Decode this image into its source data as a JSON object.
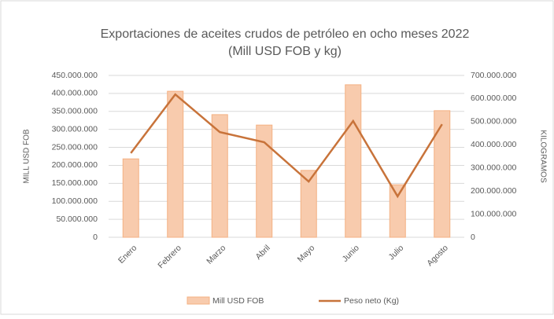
{
  "chart_data": {
    "type": "bar",
    "title": "Exportaciones de aceites crudos de petróleo en ocho meses 2022",
    "subtitle": "(Mill USD FOB y kg)",
    "y_label": "MILL USD FOB",
    "y2_label": "KILOGRAMOS",
    "categories": [
      "Enero",
      "Febrero",
      "Marzo",
      "Abril",
      "Mayo",
      "Junio",
      "Julio",
      "Agosto"
    ],
    "series": [
      {
        "name": "Mill USD FOB",
        "type": "bar",
        "color": "#f8cbad",
        "values": [
          218000000,
          406000000,
          341000000,
          312000000,
          186000000,
          424000000,
          146000000,
          352000000
        ]
      },
      {
        "name": "Peso neto (Kg)",
        "type": "line",
        "axis": "y2",
        "color": "#c8733a",
        "values": [
          364000000,
          618000000,
          455000000,
          411000000,
          241000000,
          503000000,
          177000000,
          489000000
        ]
      }
    ],
    "ylim": [
      0,
      450000000
    ],
    "yticks": [
      0,
      {
        "value": 50000000,
        "label": "50.000.000"
      },
      {
        "value": 100000000,
        "label": "100.000.000"
      },
      {
        "value": 150000000,
        "label": "150.000.000"
      },
      {
        "value": 200000000,
        "label": "200.000.000"
      },
      {
        "value": 250000000,
        "label": "250.000.000"
      },
      {
        "value": 300000000,
        "label": "300.000.000"
      },
      {
        "value": 350000000,
        "label": "350.000.000"
      },
      {
        "value": 400000000,
        "label": "400.000.000"
      },
      {
        "value": 450000000,
        "label": "450.000.000"
      }
    ],
    "y2lim": [
      0,
      700000000
    ],
    "y2ticks": [
      0,
      {
        "value": 100000000,
        "label": "100.000.000"
      },
      {
        "value": 200000000,
        "label": "200.000.000"
      },
      {
        "value": 300000000,
        "label": "300.000.000"
      },
      {
        "value": 400000000,
        "label": "400.000.000"
      },
      {
        "value": 500000000,
        "label": "500.000.000"
      },
      {
        "value": 600000000,
        "label": "600.000.000"
      },
      {
        "value": 700000000,
        "label": "700.000.000"
      }
    ],
    "grid": true
  }
}
